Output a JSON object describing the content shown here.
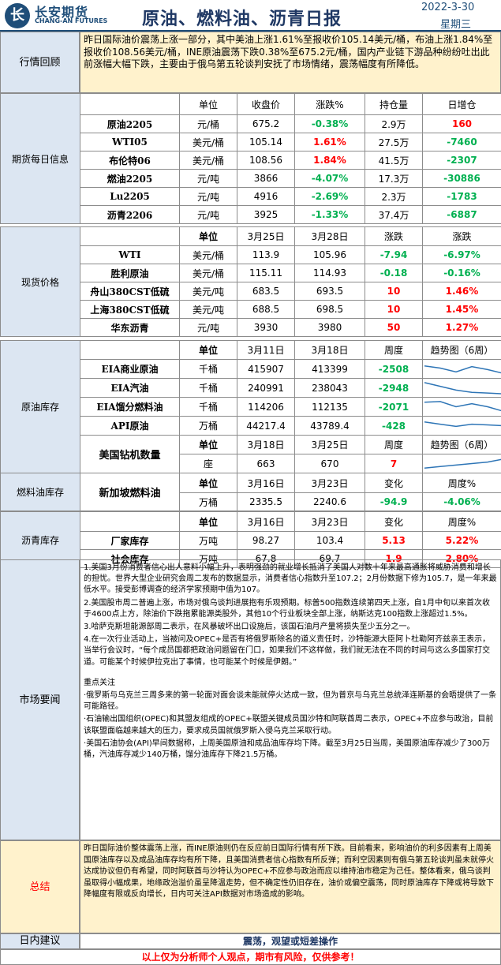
{
  "header": {
    "logo_glyph": "长",
    "brand_cn": "长安期货",
    "brand_en": "CHANG-AN FUTURES",
    "title": "原油、燃料油、沥青日报",
    "date": "2022-3-30",
    "weekday": "星期三"
  },
  "review": {
    "label": "行情回顾",
    "text": "昨日国际油价震荡上涨一部分，其中美油上涨1.61%至报收价105.14美元/桶，布油上涨1.84%至报收价108.56美元/桶，INE原油震荡下跌0.38%至675.2元/桶，国内产业链下游品种纷纷吐出此前涨幅大幅下跌，主要由于俄乌第五轮谈判安抚了市场情绪，震荡幅度有所降低。"
  },
  "futures": {
    "label": "期货每日信息",
    "headers": [
      "单位",
      "收盘价",
      "涨跌%",
      "持仓量",
      "日增仓"
    ],
    "rows": [
      {
        "name": "原油2205",
        "unit": "元/桶",
        "close": "675.2",
        "chg": "-0.38%",
        "oi": "2.9万",
        "add": "160"
      },
      {
        "name": "WTI05",
        "unit": "美元/桶",
        "close": "105.14",
        "chg": "1.61%",
        "oi": "27.5万",
        "add": "-7460"
      },
      {
        "name": "布伦特06",
        "unit": "美元/桶",
        "close": "108.56",
        "chg": "1.84%",
        "oi": "41.5万",
        "add": "-2307"
      },
      {
        "name": "燃油2205",
        "unit": "元/吨",
        "close": "3866",
        "chg": "-4.07%",
        "oi": "17.3万",
        "add": "-30886"
      },
      {
        "name": "Lu2205",
        "unit": "元/吨",
        "close": "4916",
        "chg": "-2.69%",
        "oi": "2.3万",
        "add": "-1783"
      },
      {
        "name": "沥青2206",
        "unit": "元/吨",
        "close": "3925",
        "chg": "-1.33%",
        "oi": "37.4万",
        "add": "-6887"
      }
    ]
  },
  "spot": {
    "label": "现货价格",
    "headers": [
      "单位",
      "3月25日",
      "3月28日",
      "涨跌",
      "涨跌"
    ],
    "rows": [
      {
        "name": "WTI",
        "unit": "美元/桶",
        "p1": "113.9",
        "p2": "105.96",
        "chg": "-7.94",
        "pct": "-6.97%"
      },
      {
        "name": "胜利原油",
        "unit": "美元/桶",
        "p1": "115.11",
        "p2": "114.93",
        "chg": "-0.18",
        "pct": "-0.16%"
      },
      {
        "name": "舟山380CST低硫",
        "unit": "美元/吨",
        "p1": "683.5",
        "p2": "693.5",
        "chg": "10",
        "pct": "1.46%"
      },
      {
        "name": "上海380CST低硫",
        "unit": "美元/吨",
        "p1": "688.5",
        "p2": "698.5",
        "chg": "10",
        "pct": "1.45%"
      },
      {
        "name": "华东沥青",
        "unit": "元/吨",
        "p1": "3930",
        "p2": "3980",
        "chg": "50",
        "pct": "1.27%"
      }
    ]
  },
  "crude_inv": {
    "label": "原油库存",
    "headers": [
      "单位",
      "3月11日",
      "3月18日",
      "周度",
      "趋势图（6周）"
    ],
    "rows": [
      {
        "name": "EIA商业原油",
        "unit": "千桶",
        "v1": "415907",
        "v2": "413399",
        "wk": "-2508",
        "trend": [
          0.7,
          0.55,
          0.3,
          0.65,
          0.45,
          0.2
        ]
      },
      {
        "name": "EIA汽油",
        "unit": "千桶",
        "v1": "240991",
        "v2": "238043",
        "wk": "-2948",
        "trend": [
          0.85,
          0.6,
          0.35,
          0.2,
          0.15,
          0.1
        ]
      },
      {
        "name": "EIA馏分燃料油",
        "unit": "千桶",
        "v1": "114206",
        "v2": "112135",
        "wk": "-2071",
        "trend": [
          0.8,
          0.85,
          0.5,
          0.7,
          0.5,
          0.2
        ]
      },
      {
        "name": "API原油",
        "unit": "万桶",
        "v1": "44217.4",
        "v2": "43789.4",
        "wk": "-428",
        "trend": [
          0.75,
          0.6,
          0.45,
          0.6,
          0.55,
          0.5
        ]
      }
    ],
    "rig": {
      "name": "美国钻机数量",
      "headers": [
        "单位",
        "3月18日",
        "3月25日",
        "周度",
        "趋势图（6周）"
      ],
      "unit": "座",
      "v1": "663",
      "v2": "670",
      "wk": "7",
      "trend": [
        0.2,
        0.3,
        0.4,
        0.5,
        0.6,
        0.8
      ]
    }
  },
  "fuel_inv": {
    "label": "燃料油库存",
    "name": "新加坡燃料油",
    "headers": [
      "单位",
      "3月16日",
      "3月23日",
      "变化",
      "周度%"
    ],
    "unit": "万桶",
    "v1": "2335.5",
    "v2": "2240.6",
    "chg": "-94.9",
    "pct": "-4.06%"
  },
  "asphalt_inv": {
    "label": "沥青库存",
    "headers": [
      "单位",
      "3月16日",
      "3月23日",
      "变化",
      "周度%"
    ],
    "rows": [
      {
        "name": "厂家库存",
        "unit": "万吨",
        "v1": "98.27",
        "v2": "103.4",
        "chg": "5.13",
        "pct": "5.22%"
      },
      {
        "name": "社会库存",
        "unit": "万吨",
        "v1": "67.8",
        "v2": "69.7",
        "chg": "1.9",
        "pct": "2.80%"
      }
    ]
  },
  "news": {
    "label": "市场要闻",
    "items": [
      "1.美国3月份消费者信心出人意料小幅上升，表明强劲的就业增长抵消了美国人对数十年来最高通胀将威胁消费和增长的担忧。世界大型企业研究会周二发布的数据显示，消费者信心指数升至107.2；2月份数据下修为105.7，是一年来最低水平。接受彭博调查的经济学家预期中值为107。",
      "2.美国股市周二普遍上涨，市场对俄乌谈判进展抱有乐观预期。标普500指数连续第四天上涨，自1月中旬以来首次收于4600点上方，除油价下跌拖累能源类股外，其他10个行业板块全部上涨，纳斯达克100指数上涨超过1.5%。",
      "3.哈萨克斯坦能源部周二表示，在风暴破坏出口设施后，该国石油月产量将损失至少五分之一。",
      "4.在一次行业活动上，当被问及OPEC+是否有将俄罗斯除名的道义责任时，沙特能源大臣阿卜杜勒阿齐兹亲王表示，当举行会议时，“每个成员国都把政治问题留在门口，如果我们不这样做，我们就无法在不同的时间与这么多国家打交道。可能某个时候伊拉克出了事情，也可能某个时候是伊朗。”"
    ],
    "focus_title": "重点关注",
    "focus": [
      "·俄罗斯与乌克兰三周多来的第一轮面对面会谈未能就停火达成一致，但为普京与乌克兰总统泽连斯基的会晤提供了一条可能路径。",
      "·石油输出国组织(OPEC)和其盟友组成的OPEC+联盟关键成员国沙特和阿联酋周二表示，OPEC+不应参与政治，目前该联盟面临越来越大的压力，要求成员国就俄罗斯入侵乌克兰采取行动。",
      "·美国石油协会(API)早间数据称，上周美国原油和成品油库存均下降。截至3月25日当周，美国原油库存减少了300万桶，汽油库存减少140万桶，馏分油库存下降21.5万桶。"
    ]
  },
  "summary": {
    "label": "总结",
    "text": "昨日国际油价整体震荡上涨，而INE原油则仍在反应前日国际行情有所下跌。目前看来，影响油价的利多因素有上周美国原油库存以及成品油库存均有所下降，且美国消费者信心指数有所反弹；而利空因素则有俄乌第五轮谈判虽未就停火达成协议但仍有希望，同时阿联酋与沙特认为OPEC+不应参与政治而应以维持油市稳定为己任。整体看来，俄乌谈判虽取得小幅成果，地缘政治溢价虽呈降温走势，但不确定性仍旧存在，油价或偏空震荡，同时原油库存下降或将导致下降幅度有限或反向增长，日内可关注API数据对市场造成的影响。"
  },
  "advice": {
    "label": "日内建议",
    "text": "震荡，观望或短差操作"
  },
  "disclaimer": "以上仅为分析师个人观点，期市有风险，仅供参考！",
  "colors": {
    "up": "#ff0000",
    "down": "#00b050",
    "section_bg": "#dce6f2",
    "highlight_bg": "#fff2cc",
    "trend_line": "#2e75b6"
  }
}
